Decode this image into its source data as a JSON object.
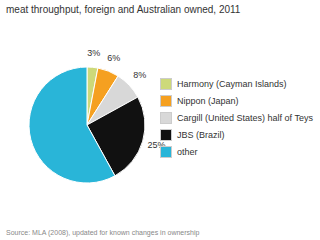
{
  "chart_data": {
    "type": "pie",
    "title": "meat throughput, foreign and Australian owned, 2011",
    "annotations": [
      "Source: MLA (2008), updated for known changes in ownership"
    ],
    "categories": [
      "Harmony (Cayman Islands)",
      "Nippon (Japan)",
      "Cargill (United States) half of Teys",
      "JBS (Brazil)",
      "other"
    ],
    "values": [
      3,
      6,
      8,
      25,
      58
    ],
    "value_labels": [
      "3%",
      "6%",
      "8%",
      "25%",
      null
    ],
    "colors": [
      "#cdd97a",
      "#f5a020",
      "#d8d8d8",
      "#111111",
      "#29b5d8"
    ],
    "data_labels": true,
    "legend": "right"
  }
}
